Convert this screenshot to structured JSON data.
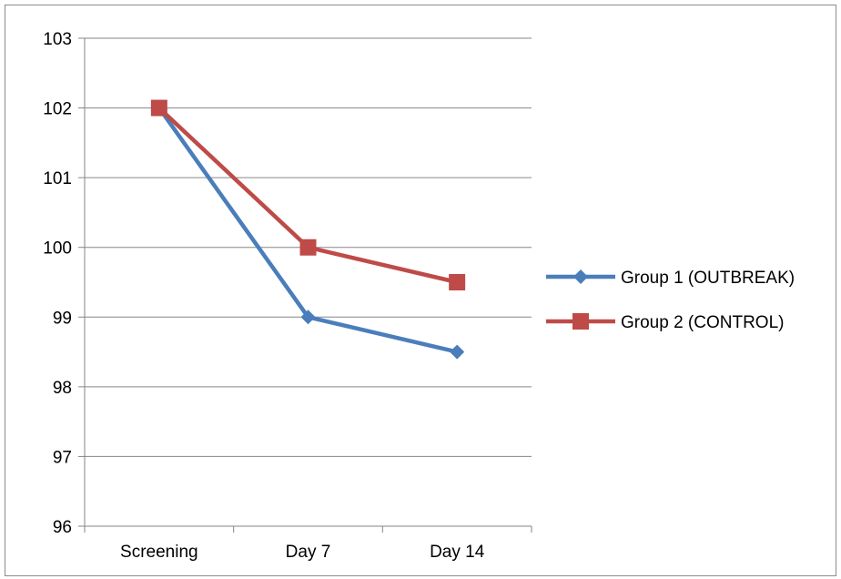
{
  "chart_data": {
    "type": "line",
    "categories": [
      "Screening",
      "Day 7",
      "Day 14"
    ],
    "series": [
      {
        "name": "Group 1 (OUTBREAK)",
        "values": [
          102,
          99,
          98.5
        ],
        "color": "#4a7ebb",
        "marker": "diamond"
      },
      {
        "name": "Group 2 (CONTROL)",
        "values": [
          102,
          100,
          99.5
        ],
        "color": "#be4b48",
        "marker": "square"
      }
    ],
    "ylim": [
      96,
      103
    ],
    "yticks": [
      "96",
      "97",
      "98",
      "99",
      "100",
      "101",
      "102",
      "103"
    ],
    "grid": true,
    "legend": "right",
    "title": "",
    "xlabel": "",
    "ylabel": ""
  }
}
